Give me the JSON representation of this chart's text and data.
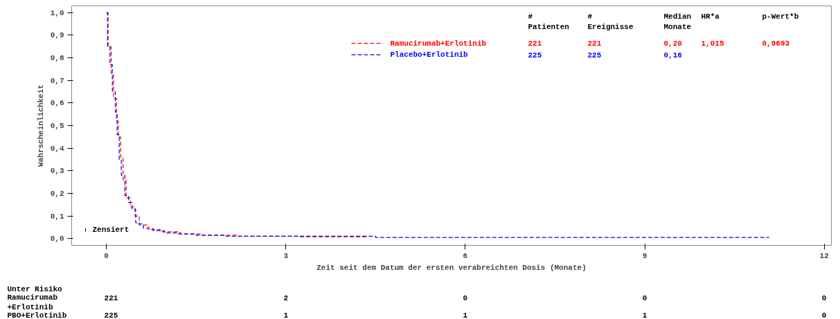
{
  "chart_data": {
    "type": "step",
    "xlabel": "Zeit seit dem Datum der ersten verabreichten Dosis (Monate)",
    "ylabel": "Wahrscheinlichkeit",
    "xlim": [
      -0.58,
      12.12
    ],
    "ylim": [
      -0.03,
      1.03
    ],
    "xticks": [
      0,
      3,
      6,
      9,
      12
    ],
    "yticks": [
      {
        "value": 0,
        "label": "0,0"
      },
      {
        "value": 0.1,
        "label": "0,1"
      },
      {
        "value": 0.2,
        "label": "0,2"
      },
      {
        "value": 0.3,
        "label": "0,3"
      },
      {
        "value": 0.4,
        "label": "0,4"
      },
      {
        "value": 0.5,
        "label": "0,5"
      },
      {
        "value": 0.6,
        "label": "0,6"
      },
      {
        "value": 0.7,
        "label": "0,7"
      },
      {
        "value": 0.8,
        "label": "0,8"
      },
      {
        "value": 0.9,
        "label": "0,9"
      },
      {
        "value": 1,
        "label": "1,0"
      }
    ],
    "grid": false,
    "legend": "top right",
    "line_style": "dashed",
    "marker": "none",
    "series": [
      {
        "name": "Ramucirumab+Erlotinib",
        "color": "#ff0000",
        "x": [
          0,
          0.03,
          0.08,
          0.12,
          0.17,
          0.2,
          0.24,
          0.28,
          0.33,
          0.4,
          0.48,
          0.55,
          0.7,
          0.9,
          1.2,
          1.6,
          2.2,
          3.2,
          4.36
        ],
        "values": [
          1.0,
          0.85,
          0.73,
          0.62,
          0.52,
          0.45,
          0.36,
          0.26,
          0.18,
          0.14,
          0.1,
          0.06,
          0.04,
          0.03,
          0.02,
          0.015,
          0.01,
          0.008,
          0.008
        ]
      },
      {
        "name": "Placebo+Erlotinib",
        "color": "#0000ff",
        "x": [
          0,
          0.02,
          0.06,
          0.1,
          0.15,
          0.18,
          0.215,
          0.25,
          0.31,
          0.37,
          0.43,
          0.49,
          0.51,
          0.62,
          0.78,
          0.97,
          1.24,
          1.5,
          2.0,
          3.0,
          4.5,
          11.08
        ],
        "values": [
          1.0,
          0.85,
          0.77,
          0.65,
          0.56,
          0.46,
          0.35,
          0.28,
          0.19,
          0.16,
          0.13,
          0.07,
          0.065,
          0.045,
          0.035,
          0.025,
          0.02,
          0.015,
          0.01,
          0.01,
          0.005,
          0.005
        ]
      }
    ],
    "annotations": [
      "#\nPatienten",
      "#\nEreignisse",
      "Median\nMonate",
      "HR*a",
      "p-Wert*b",
      "221",
      "221",
      "0,20",
      "1,015",
      "0,9693",
      "225",
      "225",
      "0,16",
      "Zensiert",
      "Unter Risiko",
      "Ramucirumab\n +Erlotinib",
      "221",
      "2",
      "0",
      "0",
      "0",
      "PBO+Erlotinib",
      "225",
      "1",
      "1",
      "1",
      "0"
    ]
  }
}
